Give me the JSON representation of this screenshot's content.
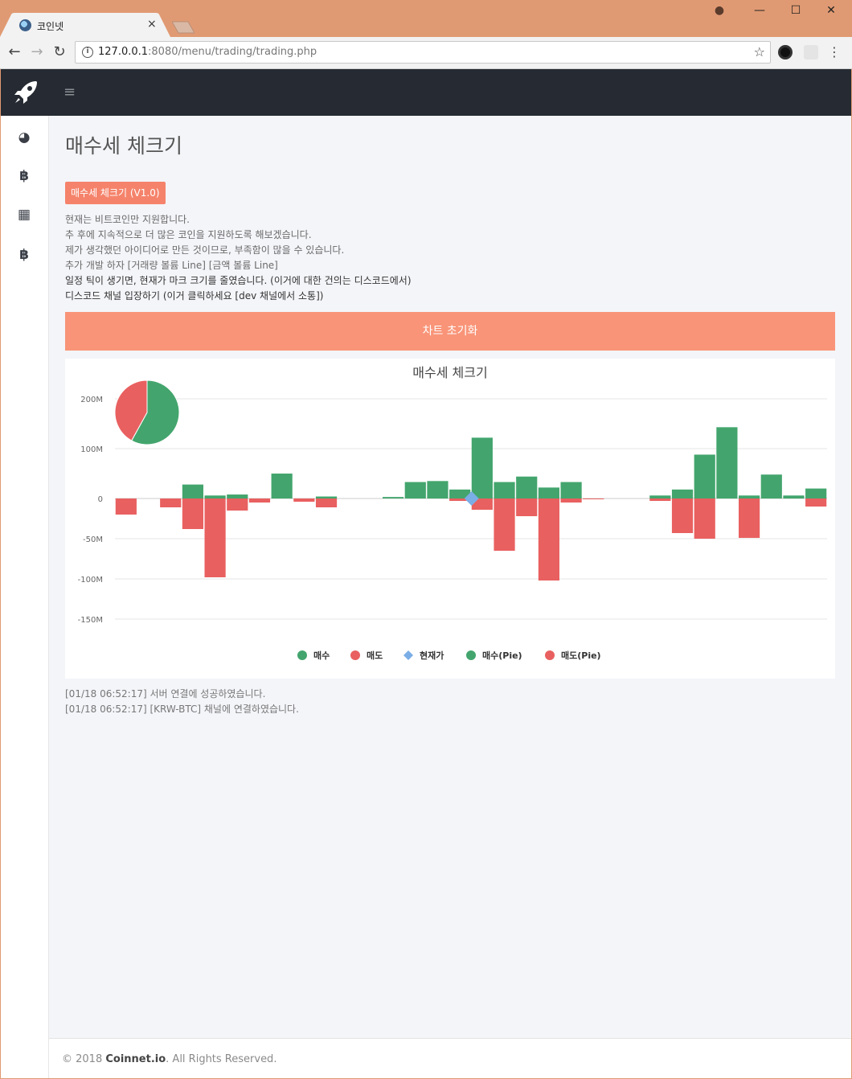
{
  "browser": {
    "tab_title": "코인넷",
    "tab_close": "×",
    "url_host": "127.0.0.1",
    "url_rest": ":8080/menu/trading/trading.php",
    "back": "←",
    "forward": "→",
    "reload": "↻",
    "star": "☆",
    "menu": "⋮",
    "win_minimize": "—",
    "win_maximize": "☐",
    "win_close": "✕",
    "profile": "●"
  },
  "nav": {
    "hamburger": "≡"
  },
  "sidebar": {
    "items": [
      {
        "icon": "dashboard-icon",
        "glyph": "◕"
      },
      {
        "icon": "bitcoin-icon",
        "glyph": "฿"
      },
      {
        "icon": "grid-icon",
        "glyph": "▦"
      },
      {
        "icon": "bitcoin-icon",
        "glyph": "฿"
      }
    ]
  },
  "main": {
    "title": "매수세 체크기",
    "badge": "매수세 체크기 (V1.0)",
    "notes": [
      "현재는 비트코인만 지원합니다.",
      "추 후에 지속적으로 더 많은 코인을 지원하도록 해보겠습니다.",
      "제가 생각했던 아이디어로 만든 것이므로, 부족함이 많을 수 있습니다.",
      "추가 개발 하자 [거래량 볼륨 Line] [금액 볼륨 Line]",
      "일정 틱이 생기면, 현재가 마크 크기를 줄였습니다. (이거에 대한 건의는 디스코드에서)",
      "디스코드 채널 입장하기 (이거 클릭하세요 [dev 채널에서 소통])"
    ],
    "reset_button": "차트 초기화",
    "log": [
      "[01/18 06:52:17] 서버 연결에 성공하였습니다.",
      "[01/18 06:52:17] [KRW-BTC] 채널에 연결하였습니다."
    ]
  },
  "footer": {
    "prefix": "© 2018 ",
    "brand": "Coinnet.io",
    "suffix": ". All Rights Reserved."
  },
  "colors": {
    "buy": "#43a56d",
    "sell": "#e96060",
    "price": "#7aaee6",
    "accent": "#f99478"
  },
  "chart_data": {
    "type": "bar",
    "title": "매수세 체크기",
    "ylim": [
      -160,
      220
    ],
    "yticks": [
      {
        "value": 200,
        "label": "200M"
      },
      {
        "value": 100,
        "label": "100M"
      },
      {
        "value": 0,
        "label": "0"
      },
      {
        "value": -50,
        "label": "-50M"
      },
      {
        "value": -100,
        "label": "-100M"
      },
      {
        "value": -150,
        "label": "-150M"
      }
    ],
    "grid": true,
    "series": [
      {
        "name": "매수",
        "color": "#43a56d",
        "values": [
          0,
          0,
          0,
          28,
          6,
          8,
          0,
          50,
          0,
          4,
          0,
          0,
          3,
          33,
          35,
          18,
          122,
          33,
          44,
          22,
          33,
          0,
          0,
          0,
          6,
          18,
          88,
          143,
          6,
          48,
          6,
          20
        ]
      },
      {
        "name": "매도",
        "color": "#e96060",
        "values": [
          -20,
          0,
          -11,
          -38,
          -98,
          -15,
          -5,
          0,
          -4,
          -11,
          0,
          0,
          0,
          0,
          0,
          -3,
          -14,
          -65,
          -22,
          -102,
          -5,
          -1,
          0,
          0,
          -3,
          -43,
          -50,
          0,
          -49,
          0,
          0,
          -10
        ]
      }
    ],
    "price_marker": {
      "name": "현재가",
      "index": 16,
      "value": 0,
      "color": "#7aaee6"
    },
    "pie": [
      {
        "name": "매수(Pie)",
        "value": 58,
        "color": "#43a56d"
      },
      {
        "name": "매도(Pie)",
        "value": 42,
        "color": "#e96060"
      }
    ],
    "legend": [
      {
        "name": "매수",
        "shape": "circle",
        "color": "#43a56d"
      },
      {
        "name": "매도",
        "shape": "circle",
        "color": "#e96060"
      },
      {
        "name": "현재가",
        "shape": "diamond",
        "color": "#7aaee6"
      },
      {
        "name": "매수(Pie)",
        "shape": "circle",
        "color": "#43a56d"
      },
      {
        "name": "매도(Pie)",
        "shape": "circle",
        "color": "#e96060"
      }
    ],
    "legend_position": "bottom-center"
  }
}
